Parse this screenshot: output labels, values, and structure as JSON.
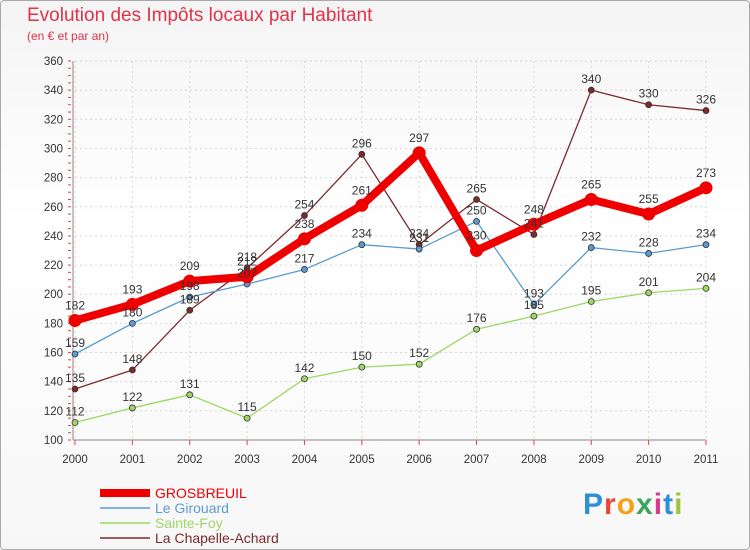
{
  "header": {
    "title": "Evolution des Impôts locaux par Habitant",
    "subtitle": "(en € et par an)"
  },
  "logo": {
    "text": "Proxiti"
  },
  "chart_data": {
    "type": "line",
    "title": "Evolution des Impôts locaux par Habitant",
    "subtitle": "(en € et par an)",
    "xlabel": "",
    "ylabel": "",
    "ylim": [
      100,
      360
    ],
    "yticks": [
      100,
      120,
      140,
      160,
      180,
      200,
      220,
      240,
      260,
      280,
      300,
      320,
      340,
      360
    ],
    "grid": true,
    "legend_position": "bottom-left",
    "x": [
      "2000",
      "2001",
      "2002",
      "2003",
      "2004",
      "2005",
      "2006",
      "2007",
      "2008",
      "2009",
      "2010",
      "2011"
    ],
    "series": [
      {
        "name": "La Chapelle-Achard",
        "color": "#7b2a2e",
        "values": [
          135,
          148,
          189,
          218,
          254,
          296,
          234,
          265,
          241,
          340,
          330,
          326
        ]
      },
      {
        "name": "Le Girouard",
        "color": "#5a9bd0",
        "values": [
          159,
          180,
          198,
          207,
          217,
          234,
          231,
          250,
          193,
          232,
          228,
          234
        ]
      },
      {
        "name": "Sainte-Foy",
        "color": "#9fd665",
        "values": [
          112,
          122,
          131,
          115,
          142,
          150,
          152,
          176,
          185,
          195,
          201,
          204
        ]
      },
      {
        "name": "GROSBREUIL",
        "color": "#ee0000",
        "values": [
          182,
          193,
          209,
          212,
          238,
          261,
          297,
          230,
          248,
          265,
          255,
          273
        ]
      }
    ],
    "legend": [
      {
        "name": "GROSBREUIL",
        "color": "#ee0000"
      },
      {
        "name": "Le Girouard",
        "color": "#5a9bd0"
      },
      {
        "name": "Sainte-Foy",
        "color": "#9fd665"
      },
      {
        "name": "La Chapelle-Achard",
        "color": "#7b2a2e"
      }
    ]
  }
}
